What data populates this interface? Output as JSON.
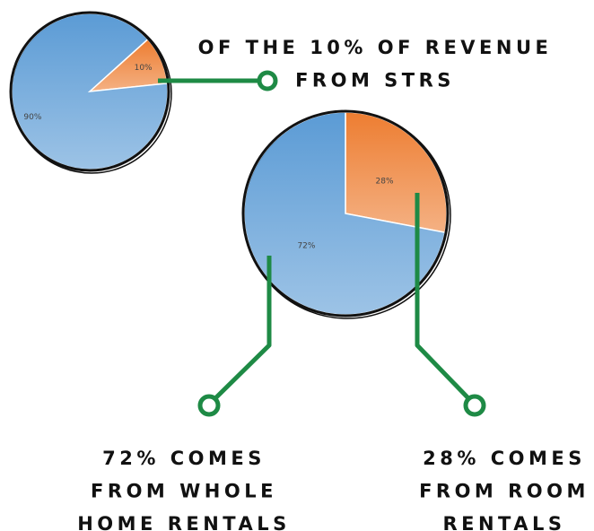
{
  "chart_data": [
    {
      "type": "pie",
      "values": [
        10,
        90
      ],
      "value_labels": [
        "10%",
        "90%"
      ],
      "colors": [
        "#ed7d31",
        "#5b9bd5"
      ],
      "annotations": [
        [
          "OF THE 10% OF REVENUE",
          "FROM STRS"
        ]
      ]
    },
    {
      "type": "pie",
      "values": [
        28,
        72
      ],
      "value_labels": [
        "28%",
        "72%"
      ],
      "colors": [
        "#ed7d31",
        "#5b9bd5"
      ],
      "annotations": [
        [
          "72% COMES",
          "FROM WHOLE",
          "HOME RENTALS"
        ],
        [
          "28% COMES",
          "FROM ROOM",
          "RENTALS"
        ]
      ]
    }
  ]
}
